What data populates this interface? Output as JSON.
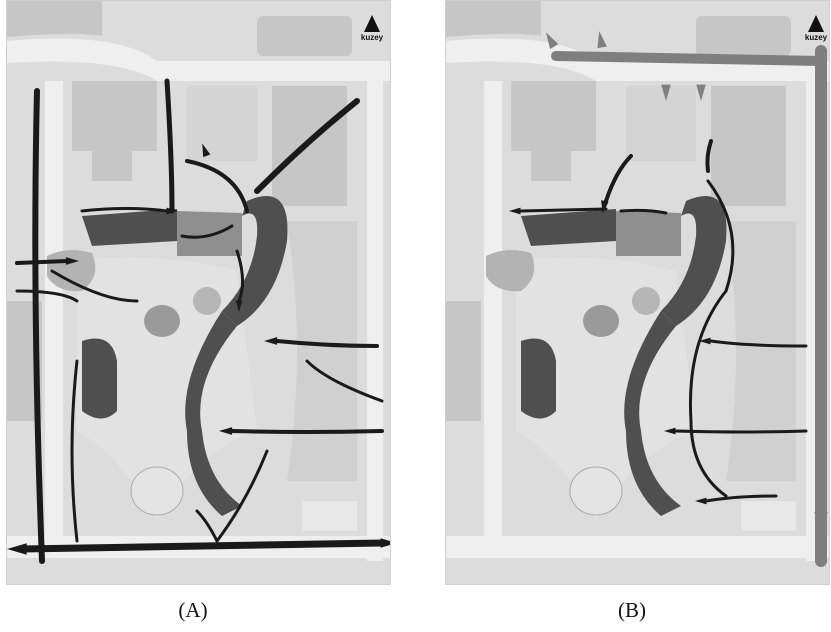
{
  "figure": {
    "panels": [
      {
        "id": "A",
        "caption": "(A)",
        "north_label": "kuzey"
      },
      {
        "id": "B",
        "caption": "(B)",
        "north_label": "kuzey"
      }
    ]
  },
  "colors": {
    "background": "#dcdcdc",
    "road": "#efefef",
    "block": "#c6c6c6",
    "plaza": "#e2e2e2",
    "dark_building": "#4f4f4f",
    "mid_building": "#8f8f8f",
    "arrow": "#1a1a1a",
    "arrow_light": "#7f7f7f"
  },
  "icons": {
    "north": "north-arrow-icon"
  }
}
